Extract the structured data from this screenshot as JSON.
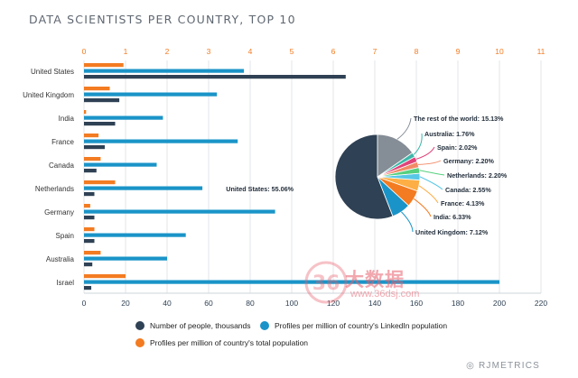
{
  "page": {
    "title": "DATA SCIENTISTS PER COUNTRY, TOP 10",
    "brand": "RJMETRICS",
    "watermark_text": "大数据",
    "watermark_url": "www.36dsj.com",
    "watermark_logo": "36"
  },
  "colors": {
    "people": "#2f4154",
    "linkedin": "#1a94c8",
    "population": "#f37b21",
    "axis_top": "#f37b21",
    "axis_bottom": "#2f4154",
    "grid": "#e3e6ea"
  },
  "legend": [
    {
      "label": "Number of people, thousands",
      "color": "#2f4154"
    },
    {
      "label": "Profiles per million of country's LinkedIn population",
      "color": "#1a94c8"
    },
    {
      "label": "Profiles per million of country's total population",
      "color": "#f37b21"
    }
  ],
  "chart_data": [
    {
      "type": "bar",
      "orientation": "horizontal",
      "categories": [
        "United States",
        "United Kingdom",
        "India",
        "France",
        "Canada",
        "Netherlands",
        "Germany",
        "Spain",
        "Australia",
        "Israel"
      ],
      "series": [
        {
          "name": "Profiles per million of country's total population",
          "axis": "top",
          "values": [
            0.95,
            0.62,
            0.05,
            0.35,
            0.4,
            0.75,
            0.15,
            0.25,
            0.4,
            1.0
          ]
        },
        {
          "name": "Profiles per million of country's LinkedIn population",
          "axis": "bottom",
          "values": [
            77,
            64,
            38,
            74,
            35,
            57,
            92,
            49,
            40,
            200
          ]
        },
        {
          "name": "Number of people, thousands",
          "axis": "bottom",
          "values": [
            126,
            17,
            15,
            10,
            6,
            5,
            5,
            5,
            4,
            3.5
          ]
        }
      ],
      "x_top": {
        "ticks": [
          0,
          1,
          2,
          3,
          4,
          5,
          6,
          7,
          8,
          9,
          10,
          11
        ],
        "lim": [
          0,
          11
        ]
      },
      "x_bottom": {
        "ticks": [
          0,
          20,
          40,
          60,
          80,
          100,
          120,
          140,
          160,
          180,
          200,
          220
        ],
        "lim": [
          0,
          220
        ]
      },
      "grid": true,
      "legend_position": "bottom"
    },
    {
      "type": "pie",
      "slices": [
        {
          "label": "United States: 55.06%",
          "value": 55.06,
          "color": "#2f4154"
        },
        {
          "label": "United Kingdom: 7.12%",
          "value": 7.12,
          "color": "#1a94c8"
        },
        {
          "label": "India: 6.33%",
          "value": 6.33,
          "color": "#f37b21"
        },
        {
          "label": "France: 4.13%",
          "value": 4.13,
          "color": "#fdae45"
        },
        {
          "label": "Canada: 2.55%",
          "value": 2.55,
          "color": "#58c7e6"
        },
        {
          "label": "Netherlands: 2.20%",
          "value": 2.2,
          "color": "#56d07e"
        },
        {
          "label": "Germany: 2.20%",
          "value": 2.2,
          "color": "#f28a66"
        },
        {
          "label": "Spain: 2.02%",
          "value": 2.02,
          "color": "#e1427a"
        },
        {
          "label": "Australia: 1.76%",
          "value": 1.76,
          "color": "#3db8aa"
        },
        {
          "label": "The rest of the world: 15.13%",
          "value": 15.13,
          "color": "#858d96"
        }
      ]
    }
  ]
}
